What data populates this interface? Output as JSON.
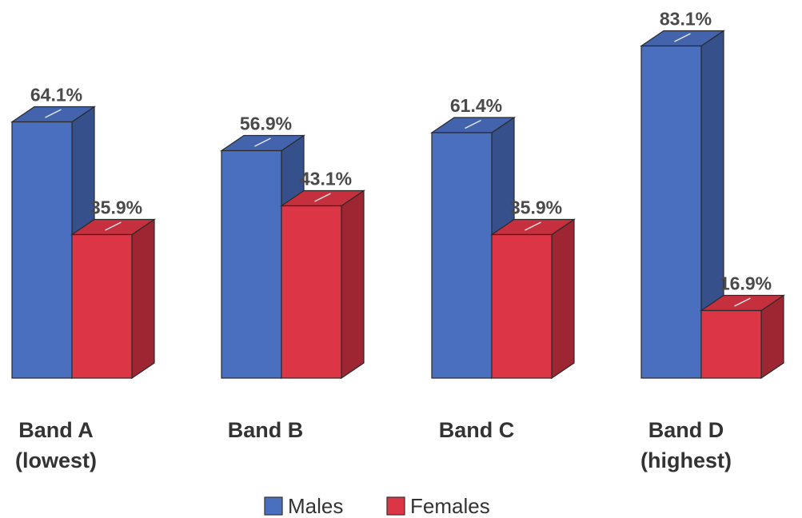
{
  "chart_data": {
    "type": "bar",
    "categories": [
      [
        "Band A",
        "(lowest)"
      ],
      [
        "Band B"
      ],
      [
        "Band C"
      ],
      [
        "Band D",
        "(highest)"
      ]
    ],
    "series": [
      {
        "name": "Males",
        "values": [
          64.1,
          56.9,
          61.4,
          83.1
        ],
        "labels": [
          "64.1%",
          "56.9%",
          "61.4%",
          "83.1%"
        ],
        "color": "#4a6fbf"
      },
      {
        "name": "Females",
        "values": [
          35.9,
          43.1,
          35.9,
          16.9
        ],
        "labels": [
          "35.9%",
          "43.1%",
          "35.9%",
          "16.9%"
        ],
        "color": "#dc3545"
      }
    ],
    "ylim": [
      0,
      100
    ],
    "grid": false,
    "legend_position": "bottom",
    "bar_style": "3d"
  }
}
